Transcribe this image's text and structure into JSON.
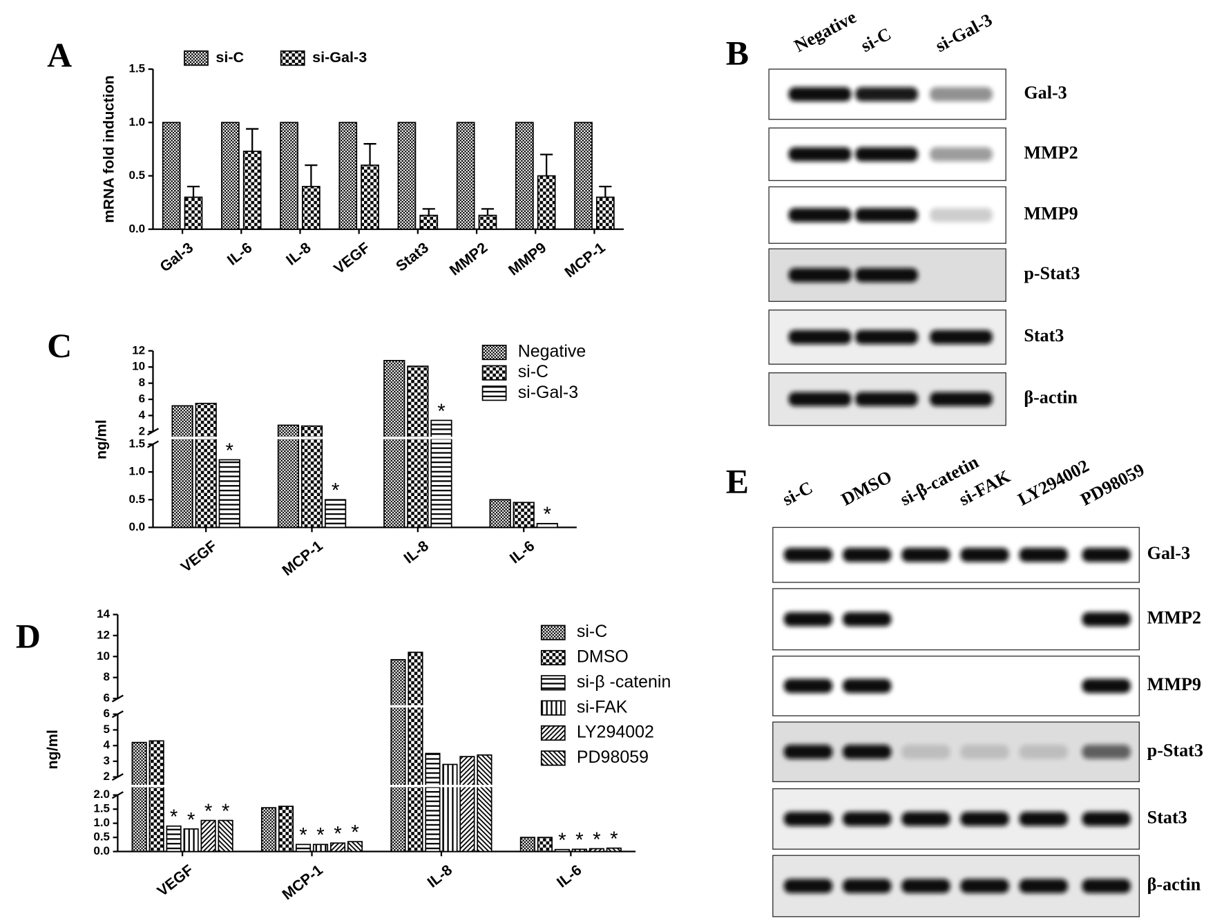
{
  "chart_data": [
    {
      "type": "bar",
      "panel": "A",
      "ylabel": "mRNA fold induction",
      "categories": [
        "Gal-3",
        "IL-6",
        "IL-8",
        "VEGF",
        "Stat3",
        "MMP2",
        "MMP9",
        "MCP-1"
      ],
      "series": [
        {
          "name": "si-C",
          "color": "#000000",
          "hatch": "dense-checker",
          "values": [
            1,
            1,
            1,
            1,
            1,
            1,
            1,
            1
          ]
        },
        {
          "name": "si-Gal-3",
          "color": "#000000",
          "hatch": "checker",
          "values": [
            0.3,
            0.73,
            0.4,
            0.6,
            0.13,
            0.13,
            0.5,
            0.3
          ],
          "errors": [
            0.1,
            0.21,
            0.2,
            0.2,
            0.06,
            0.06,
            0.2,
            0.1
          ]
        }
      ],
      "ylim": [
        0,
        1.5
      ],
      "yticks": [
        [
          {
            "value": 0,
            "label": "0.0"
          },
          0.5,
          {
            "value": 1,
            "label": "1.0"
          },
          1.5
        ]
      ],
      "legend": "top"
    },
    {
      "type": "bar",
      "panel": "C",
      "ylabel": "ng/ml",
      "categories": [
        "VEGF",
        "MCP-1",
        "IL-8",
        "IL-6"
      ],
      "series": [
        {
          "name": "Negative",
          "color": "#000000",
          "hatch": "dense-checker",
          "values": [
            5.2,
            2.8,
            10.8,
            0.5
          ]
        },
        {
          "name": "si-C",
          "color": "#000000",
          "hatch": "checker",
          "values": [
            5.5,
            2.7,
            10.1,
            0.45
          ]
        },
        {
          "name": "si-Gal-3",
          "color": "#000000",
          "hatch": "horizontal",
          "values": [
            1.22,
            0.5,
            3.4,
            0.07
          ],
          "annotations": [
            "*",
            "*",
            "*",
            "*"
          ]
        }
      ],
      "ylim": [
        0,
        12
      ],
      "y_segments": [
        [
          0,
          1.5
        ],
        [
          2,
          12
        ]
      ],
      "yticks": [
        [
          {
            "value": 0,
            "label": "0.0"
          },
          0.5,
          {
            "value": 1,
            "label": "1.0"
          },
          1.5
        ],
        [
          2,
          4,
          6,
          8,
          10,
          12
        ]
      ],
      "legend": "top-right"
    },
    {
      "type": "bar",
      "panel": "D",
      "ylabel": "ng/ml",
      "categories": [
        "VEGF",
        "MCP-1",
        "IL-8",
        "IL-6"
      ],
      "series": [
        {
          "name": "si-C",
          "color": "#000000",
          "hatch": "dense-checker",
          "values": [
            4.2,
            1.55,
            9.7,
            0.5
          ]
        },
        {
          "name": "DMSO",
          "color": "#000000",
          "hatch": "checker",
          "values": [
            4.3,
            1.6,
            10.4,
            0.5
          ]
        },
        {
          "name": "si-β -catenin",
          "color": "#000000",
          "hatch": "horizontal",
          "values": [
            0.9,
            0.25,
            3.5,
            0.07
          ],
          "annotations": [
            "*",
            "*",
            null,
            "*"
          ]
        },
        {
          "name": "si-FAK",
          "color": "#000000",
          "hatch": "vertical",
          "values": [
            0.8,
            0.25,
            2.8,
            0.08
          ],
          "annotations": [
            "*",
            "*",
            null,
            "*"
          ]
        },
        {
          "name": "LY294002",
          "color": "#000000",
          "hatch": "diagonal",
          "values": [
            1.1,
            0.3,
            3.3,
            0.1
          ],
          "annotations": [
            "*",
            "*",
            null,
            "*"
          ]
        },
        {
          "name": "PD98059",
          "color": "#000000",
          "hatch": "back-diagonal",
          "values": [
            1.1,
            0.35,
            3.4,
            0.12
          ],
          "annotations": [
            "*",
            "*",
            null,
            "*"
          ]
        }
      ],
      "ylim": [
        0,
        14
      ],
      "y_segments": [
        [
          0,
          2
        ],
        [
          2,
          6
        ],
        [
          6,
          14
        ]
      ],
      "yticks": [
        [
          {
            "value": 0,
            "label": "0.0"
          },
          0.5,
          {
            "value": 1,
            "label": "1.0"
          },
          1.5,
          {
            "value": 2,
            "label": "2.0"
          }
        ],
        [
          2,
          3,
          4,
          5,
          6
        ],
        [
          6,
          8,
          10,
          12,
          14
        ]
      ],
      "legend": "top-right"
    }
  ],
  "blots": [
    {
      "panel": "B",
      "lanes": [
        "Negative",
        "si-C",
        "si-Gal-3"
      ],
      "rows": [
        "Gal-3",
        "MMP2",
        "MMP9",
        "p-Stat3",
        "Stat3",
        "β-actin"
      ]
    },
    {
      "panel": "E",
      "lanes": [
        "si-C",
        "DMSO",
        "si-β-catetin",
        "si-FAK",
        "LY294002",
        "PD98059"
      ],
      "rows": [
        "Gal-3",
        "MMP2",
        "MMP9",
        "p-Stat3",
        "Stat3",
        "β-actin"
      ]
    }
  ]
}
